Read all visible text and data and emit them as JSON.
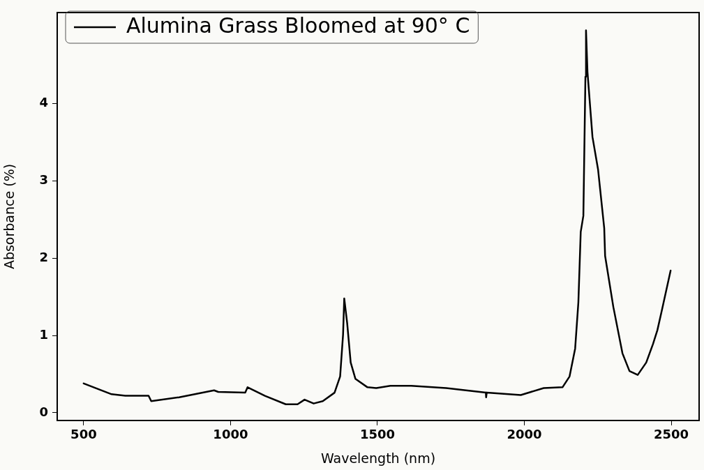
{
  "chart_data": {
    "type": "line",
    "xlabel": "Wavelength (nm)",
    "ylabel": "Absorbance (%)",
    "xlim": [
      410,
      2595
    ],
    "ylim": [
      -0.1,
      5.18
    ],
    "xticks": [
      500,
      1000,
      1500,
      2000,
      2500
    ],
    "yticks": [
      0,
      1,
      2,
      3,
      4
    ],
    "grid": false,
    "legend": "top left",
    "marker": "none",
    "line_style": "solid",
    "series": [
      {
        "name": "Alumina Grass Bloomed at 90° C",
        "color": "#000000",
        "x": [
          500,
          595,
          642,
          721,
          730,
          825,
          944,
          958,
          1050,
          1058,
          1117,
          1188,
          1228,
          1252,
          1283,
          1314,
          1354,
          1373,
          1383,
          1387,
          1397,
          1409,
          1425,
          1466,
          1496,
          1544,
          1615,
          1734,
          1869,
          1870,
          1872,
          1988,
          2066,
          2130,
          2154,
          2173,
          2184,
          2192,
          2201,
          2208,
          2210,
          2215,
          2232,
          2251,
          2272,
          2275,
          2303,
          2334,
          2358,
          2386,
          2415,
          2438,
          2453,
          2469,
          2498
        ],
        "values": [
          0.38,
          0.24,
          0.22,
          0.22,
          0.15,
          0.2,
          0.29,
          0.27,
          0.26,
          0.33,
          0.22,
          0.11,
          0.11,
          0.17,
          0.12,
          0.15,
          0.26,
          0.47,
          1.01,
          1.48,
          1.16,
          0.65,
          0.44,
          0.33,
          0.32,
          0.35,
          0.35,
          0.32,
          0.26,
          0.2,
          0.26,
          0.23,
          0.32,
          0.33,
          0.47,
          0.83,
          1.43,
          2.34,
          2.55,
          4.35,
          4.95,
          4.41,
          3.57,
          3.15,
          2.39,
          2.03,
          1.37,
          0.77,
          0.54,
          0.49,
          0.65,
          0.89,
          1.07,
          1.34,
          1.84
        ]
      }
    ]
  }
}
